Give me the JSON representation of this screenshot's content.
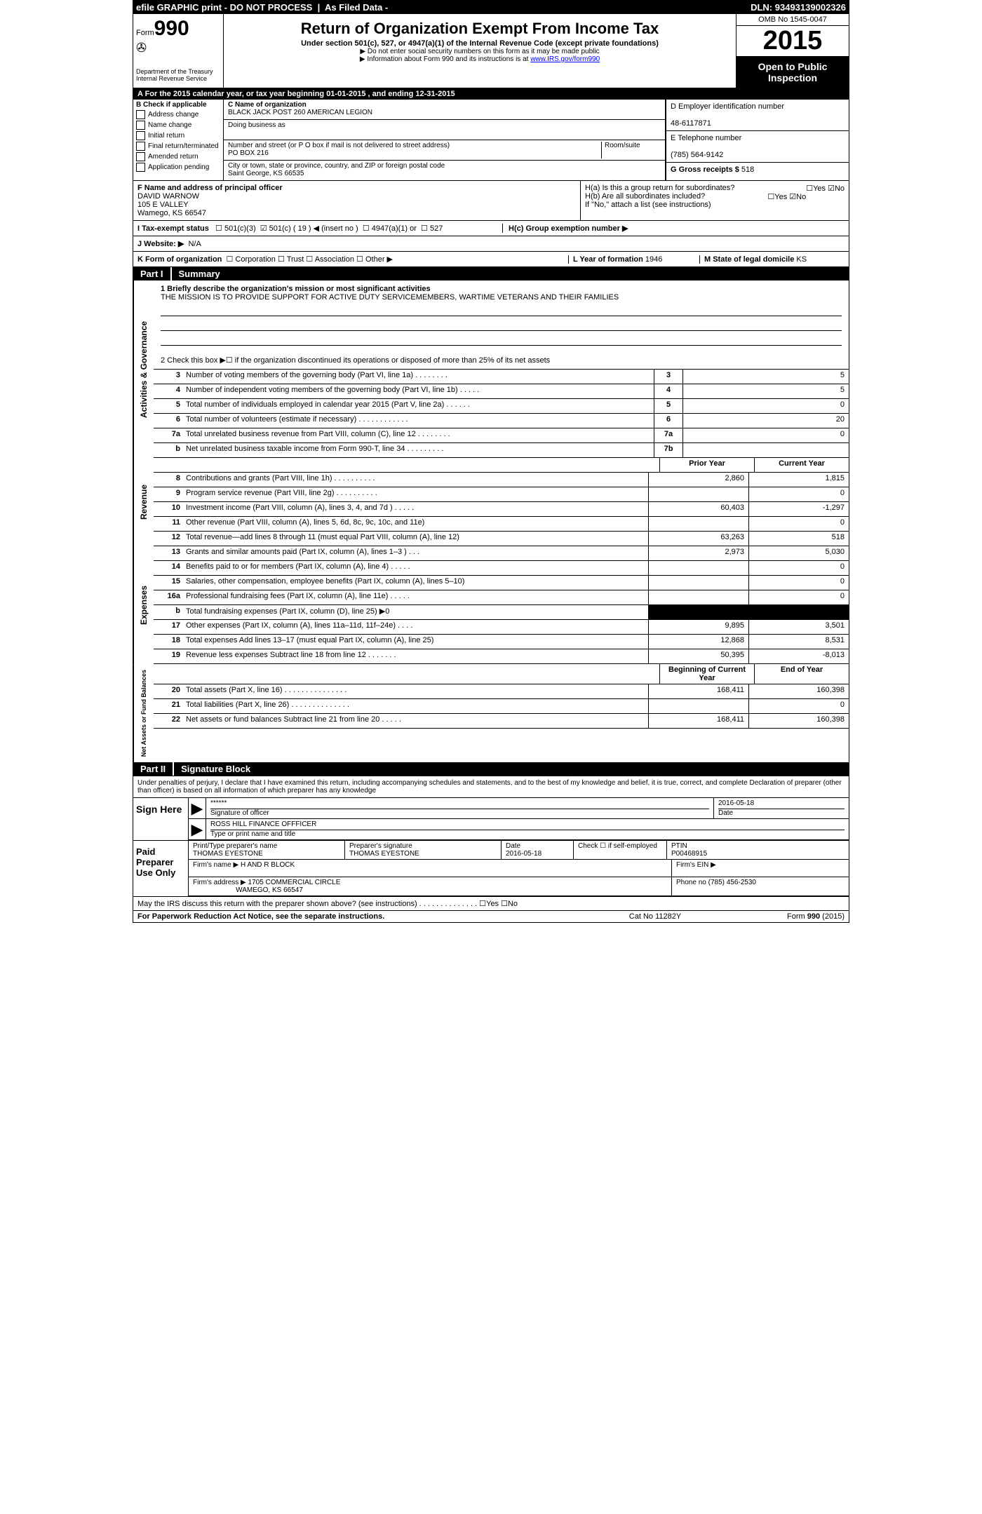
{
  "topbar": {
    "left": "efile GRAPHIC print - DO NOT PROCESS",
    "mid": "As Filed Data -",
    "dln_label": "DLN:",
    "dln": "93493139002326"
  },
  "header": {
    "form_label": "Form",
    "form_number": "990",
    "agency1": "Department of the Treasury",
    "agency2": "Internal Revenue Service",
    "title": "Return of Organization Exempt From Income Tax",
    "subtitle": "Under section 501(c), 527, or 4947(a)(1) of the Internal Revenue Code (except private foundations)",
    "note1": "▶ Do not enter social security numbers on this form as it may be made public",
    "note2_pre": "▶ Information about Form 990 and its instructions is at ",
    "note2_link": "www.IRS.gov/form990",
    "omb": "OMB No 1545-0047",
    "year": "2015",
    "open1": "Open to Public",
    "open2": "Inspection"
  },
  "row_a": {
    "text": "A  For the 2015 calendar year, or tax year beginning 01-01-2015    , and ending 12-31-2015"
  },
  "col_b": {
    "label": "B  Check if applicable",
    "items": [
      "Address change",
      "Name change",
      "Initial return",
      "Final return/terminated",
      "Amended return",
      "Application pending"
    ]
  },
  "col_c": {
    "c_label": "C Name of organization",
    "org_name": "BLACK JACK POST 260 AMERICAN LEGION",
    "dba_label": "Doing business as",
    "street_label": "Number and street (or P O box if mail is not delivered to street address)",
    "room_label": "Room/suite",
    "street": "PO BOX 216",
    "city_label": "City or town, state or province, country, and ZIP or foreign postal code",
    "city": "Saint George, KS  66535"
  },
  "col_d": {
    "d_label": "D Employer identification number",
    "ein": "48-6117871",
    "e_label": "E Telephone number",
    "phone": "(785) 564-9142",
    "g_label": "G Gross receipts $",
    "g_val": "518"
  },
  "f": {
    "label": "F   Name and address of principal officer",
    "name": "DAVID WARNOW",
    "addr1": "105 E VALLEY",
    "addr2": "Wamego, KS  66547"
  },
  "h": {
    "ha": "H(a)  Is this a group return for subordinates?",
    "hb": "H(b)  Are all subordinates included?",
    "hnote": "If \"No,\" attach a list  (see instructions)",
    "hc": "H(c)   Group exemption number ▶",
    "yes": "Yes",
    "no": "No"
  },
  "i": {
    "label": "I  Tax-exempt status",
    "opts": [
      "501(c)(3)",
      "501(c) ( 19 ) ◀ (insert no )",
      "4947(a)(1) or",
      "527"
    ]
  },
  "j": {
    "label": "J  Website: ▶",
    "val": "N/A"
  },
  "k": {
    "label": "K Form of organization",
    "opts": [
      "Corporation",
      "Trust",
      "Association",
      "Other ▶"
    ],
    "l_label": "L Year of formation",
    "l_val": "1946",
    "m_label": "M State of legal domicile",
    "m_val": "KS"
  },
  "part1": {
    "label": "Part I",
    "title": "Summary"
  },
  "mission": {
    "line1_label": "1 Briefly describe the organization's mission or most significant activities",
    "text": "THE MISSION IS TO PROVIDE SUPPORT FOR ACTIVE DUTY SERVICEMEMBERS, WARTIME VETERANS AND THEIR FAMILIES",
    "line2": "2  Check this box ▶☐ if the organization discontinued its operations or disposed of more than 25% of its net assets"
  },
  "gov_rows": [
    {
      "n": "3",
      "t": "Number of voting members of the governing body (Part VI, line 1a)  .  .  .  .  .  .  .  .",
      "box": "3",
      "v": "5"
    },
    {
      "n": "4",
      "t": "Number of independent voting members of the governing body (Part VI, line 1b)  .  .  .  .  .",
      "box": "4",
      "v": "5"
    },
    {
      "n": "5",
      "t": "Total number of individuals employed in calendar year 2015 (Part V, line 2a)  .  .  .  .  .  .",
      "box": "5",
      "v": "0"
    },
    {
      "n": "6",
      "t": "Total number of volunteers (estimate if necessary)  .  .  .  .  .  .  .  .  .  .  .  .",
      "box": "6",
      "v": "20"
    },
    {
      "n": "7a",
      "t": "Total unrelated business revenue from Part VIII, column (C), line 12  .  .  .  .  .  .  .  .",
      "box": "7a",
      "v": "0"
    },
    {
      "n": "b",
      "t": "Net unrelated business taxable income from Form 990-T, line 34  .  .  .  .  .  .  .  .  .",
      "box": "7b",
      "v": ""
    }
  ],
  "side_labels": {
    "gov": "Activities & Governance",
    "rev": "Revenue",
    "exp": "Expenses",
    "net": "Net Assets or Fund Balances"
  },
  "col_heads": {
    "prior": "Prior Year",
    "current": "Current Year",
    "beg": "Beginning of Current Year",
    "end": "End of Year"
  },
  "rev_rows": [
    {
      "n": "8",
      "t": "Contributions and grants (Part VIII, line 1h)  .  .  .  .  .  .  .  .  .  .",
      "p": "2,860",
      "c": "1,815"
    },
    {
      "n": "9",
      "t": "Program service revenue (Part VIII, line 2g)  .  .  .  .  .  .  .  .  .  .",
      "p": "",
      "c": "0"
    },
    {
      "n": "10",
      "t": "Investment income (Part VIII, column (A), lines 3, 4, and 7d )  .  .  .  .  .",
      "p": "60,403",
      "c": "-1,297"
    },
    {
      "n": "11",
      "t": "Other revenue (Part VIII, column (A), lines 5, 6d, 8c, 9c, 10c, and 11e)",
      "p": "",
      "c": "0"
    },
    {
      "n": "12",
      "t": "Total revenue—add lines 8 through 11 (must equal Part VIII, column (A), line 12)",
      "p": "63,263",
      "c": "518"
    }
  ],
  "exp_rows": [
    {
      "n": "13",
      "t": "Grants and similar amounts paid (Part IX, column (A), lines 1–3 )  .  .  .",
      "p": "2,973",
      "c": "5,030"
    },
    {
      "n": "14",
      "t": "Benefits paid to or for members (Part IX, column (A), line 4)  .  .  .  .  .",
      "p": "",
      "c": "0"
    },
    {
      "n": "15",
      "t": "Salaries, other compensation, employee benefits (Part IX, column (A), lines 5–10)",
      "p": "",
      "c": "0"
    },
    {
      "n": "16a",
      "t": "Professional fundraising fees (Part IX, column (A), line 11e)  .  .  .  .  .",
      "p": "",
      "c": "0"
    },
    {
      "n": "b",
      "t": "Total fundraising expenses (Part IX, column (D), line 25) ▶0",
      "p": "BLACK",
      "c": "BLACK"
    },
    {
      "n": "17",
      "t": "Other expenses (Part IX, column (A), lines 11a–11d, 11f–24e)  .  .  .  .",
      "p": "9,895",
      "c": "3,501"
    },
    {
      "n": "18",
      "t": "Total expenses  Add lines 13–17 (must equal Part IX, column (A), line 25)",
      "p": "12,868",
      "c": "8,531"
    },
    {
      "n": "19",
      "t": "Revenue less expenses  Subtract line 18 from line 12  .  .  .  .  .  .  .",
      "p": "50,395",
      "c": "-8,013"
    }
  ],
  "net_rows": [
    {
      "n": "20",
      "t": "Total assets (Part X, line 16)  .  .  .  .  .  .  .  .  .  .  .  .  .  .  .",
      "p": "168,411",
      "c": "160,398"
    },
    {
      "n": "21",
      "t": "Total liabilities (Part X, line 26)  .  .  .  .  .  .  .  .  .  .  .  .  .  .",
      "p": "",
      "c": "0"
    },
    {
      "n": "22",
      "t": "Net assets or fund balances  Subtract line 21 from line 20  .  .  .  .  .",
      "p": "168,411",
      "c": "160,398"
    }
  ],
  "part2": {
    "label": "Part II",
    "title": "Signature Block"
  },
  "perjury": "Under penalties of perjury, I declare that I have examined this return, including accompanying schedules and statements, and to the best of my knowledge and belief, it is true, correct, and complete  Declaration of preparer (other than officer) is based on all information of which preparer has any knowledge",
  "sign": {
    "side": "Sign Here",
    "stars": "******",
    "sig_label": "Signature of officer",
    "date": "2016-05-18",
    "date_label": "Date",
    "name": "ROSS HILL FINANCE OFFFICER",
    "name_label": "Type or print name and title"
  },
  "preparer": {
    "side": "Paid Preparer Use Only",
    "h1": "Print/Type preparer's name",
    "h2": "Preparer's signature",
    "h3": "Date",
    "h4": "Check ☐ if self-employed",
    "h5": "PTIN",
    "name": "THOMAS EYESTONE",
    "sig": "THOMAS EYESTONE",
    "date": "2016-05-18",
    "ptin": "P00468915",
    "firm_label": "Firm's name   ▶",
    "firm": "H AND R BLOCK",
    "ein_label": "Firm's EIN ▶",
    "addr_label": "Firm's address ▶",
    "addr1": "1705 COMMERCIAL CIRCLE",
    "addr2": "WAMEGO, KS  66547",
    "phone_label": "Phone no",
    "phone": "(785) 456-2530"
  },
  "discuss": "May the IRS discuss this return with the preparer shown above? (see instructions)  .  .  .  .  .  .  .  .  .  .  .  .  .  . ☐Yes ☐No",
  "footer": {
    "left": "For Paperwork Reduction Act Notice, see the separate instructions.",
    "mid": "Cat No  11282Y",
    "right": "Form 990 (2015)"
  }
}
